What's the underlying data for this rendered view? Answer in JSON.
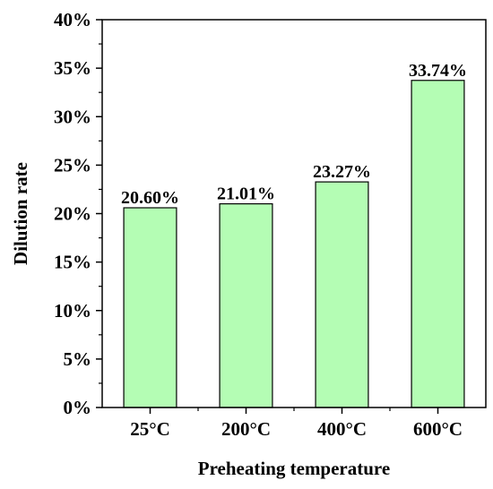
{
  "chart_data": {
    "type": "bar",
    "categories": [
      "25°C",
      "200°C",
      "400°C",
      "600°C"
    ],
    "values": [
      20.6,
      21.01,
      23.27,
      33.74
    ],
    "data_labels": [
      "20.60%",
      "21.01%",
      "23.27%",
      "33.74%"
    ],
    "xlabel": "Preheating temperature",
    "ylabel": "Dilution rate",
    "ylim": [
      0,
      40
    ],
    "yticks": [
      0,
      5,
      10,
      15,
      20,
      25,
      30,
      35,
      40
    ],
    "ytick_labels": [
      "0%",
      "5%",
      "10%",
      "15%",
      "20%",
      "25%",
      "30%",
      "35%",
      "40%"
    ],
    "grid": false,
    "bar_color": "#b4fdb4",
    "bar_edge_color": "#000000"
  }
}
